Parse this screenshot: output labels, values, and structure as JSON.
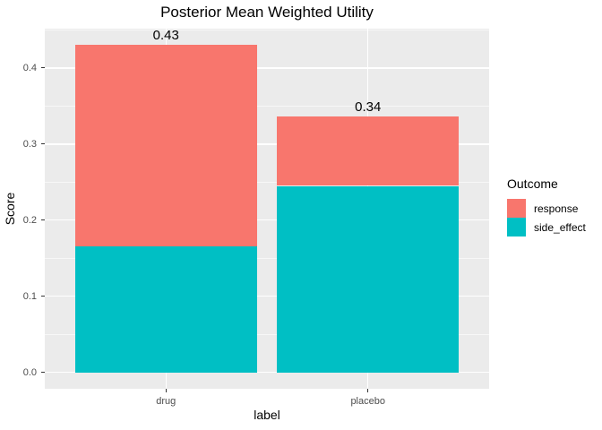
{
  "title": "Posterior Mean Weighted Utility",
  "chart_data": {
    "type": "bar",
    "stacked": true,
    "title": "Posterior Mean Weighted Utility",
    "xlabel": "label",
    "ylabel": "Score",
    "categories": [
      "drug",
      "placebo"
    ],
    "series": [
      {
        "name": "response",
        "color": "#F8766D",
        "values": [
          0.265,
          0.091
        ]
      },
      {
        "name": "side_effect",
        "color": "#00BFC4",
        "values": [
          0.165,
          0.245
        ]
      }
    ],
    "stack_order_bottom_to_top": [
      "side_effect",
      "response"
    ],
    "totals": [
      0.43,
      0.34
    ],
    "total_labels": [
      "0.43",
      "0.34"
    ],
    "yticks": [
      0.0,
      0.1,
      0.2,
      0.3,
      0.4
    ],
    "ytick_labels": [
      "0.0",
      "0.1",
      "0.2",
      "0.3",
      "0.4"
    ],
    "yticks_minor": [
      0.05,
      0.15,
      0.25,
      0.35,
      0.45
    ],
    "ylim": [
      -0.0215,
      0.4515
    ],
    "bar_rel_width": 0.9,
    "grid": true,
    "legend_position": "right"
  },
  "legend": {
    "title": "Outcome",
    "entries": [
      {
        "label": "response",
        "color": "#F8766D"
      },
      {
        "label": "side_effect",
        "color": "#00BFC4"
      }
    ]
  },
  "colors": {
    "panel_bg": "#EBEBEB",
    "grid": "#FFFFFF",
    "tick_mark": "#333333",
    "tick_label": "#4D4D4D",
    "text": "#000000",
    "background": "#FFFFFF"
  }
}
